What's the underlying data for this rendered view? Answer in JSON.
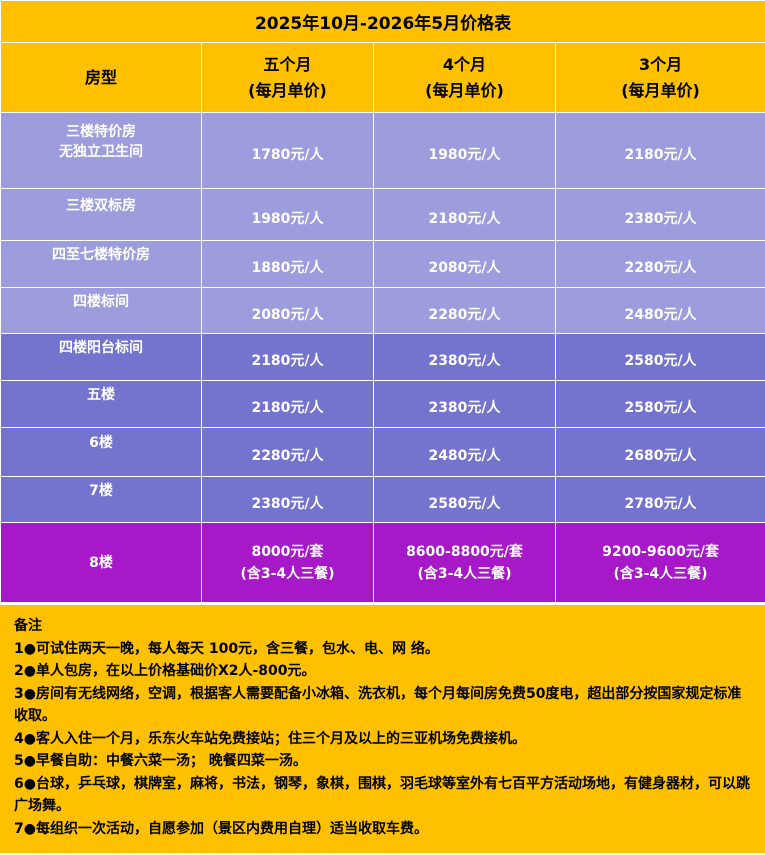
{
  "title": "2025年10月-2026年5月价格表",
  "headers": {
    "room": "房型",
    "cols": [
      {
        "line1": "五个月",
        "line2": "(每月单价)"
      },
      {
        "line1": "4个月",
        "line2": "(每月单价)"
      },
      {
        "line1": "3个月",
        "line2": "(每月单价)"
      }
    ]
  },
  "rows": [
    {
      "name1": "三楼特价房",
      "name2": "无独立卫生间",
      "prices": [
        "1780元/人",
        "1980元/人",
        "2180元/人"
      ]
    },
    {
      "name1": "三楼双标房",
      "prices": [
        "1980元/人",
        "2180元/人",
        "2380元/人"
      ]
    },
    {
      "name1": "四至七楼特价房",
      "prices": [
        "1880元/人",
        "2080元/人",
        "2280元/人"
      ]
    },
    {
      "name1": "四楼标间",
      "prices": [
        "2080元/人",
        "2280元/人",
        "2480元/人"
      ]
    },
    {
      "name1": "四楼阳台标间",
      "prices": [
        "2180元/人",
        "2380元/人",
        "2580元/人"
      ]
    },
    {
      "name1": "五楼",
      "prices": [
        "2180元/人",
        "2380元/人",
        "2580元/人"
      ]
    },
    {
      "name1": "6楼",
      "prices": [
        "2280元/人",
        "2480元/人",
        "2680元/人"
      ]
    },
    {
      "name1": "7楼",
      "prices": [
        "2380元/人",
        "2580元/人",
        "2780元/人"
      ]
    }
  ],
  "suite": {
    "name": "8楼",
    "prices": [
      "8000元/套",
      "8600-8800元/套",
      "9200-9600元/套"
    ],
    "note": "(含3-4人三餐)"
  },
  "notes": {
    "heading": "备注",
    "items": [
      "1●可试住两天一晚，每人每天 100元，含三餐，包水、电、网 络。",
      "2●单人包房，在以上价格基础价X2人-800元。",
      "3●房间有无线网络，空调，根据客人需要配备小冰箱、洗衣机，每个月每间房免费50度电，超出部分按国家规定标准收取。",
      "4●客人入住一个月，乐东火车站免费接站；住三个月及以上的三亚机场免费接机。",
      "5●早餐自助：中餐六菜一汤； 晚餐四菜一汤。",
      "6●台球，乒乓球，棋牌室，麻将，书法，钢琴，象棋，围棋，羽毛球等室外有七百平方活动场地，有健身器材，可以跳广场舞。",
      "7●每组织一次活动，自愿参加（景区内费用自理）适当收取车费。"
    ]
  },
  "colors": {
    "header": "#FFC000",
    "row_light": "#9D9DDD",
    "row_mid": "#7474CF",
    "row_suite": "#A618C8"
  }
}
